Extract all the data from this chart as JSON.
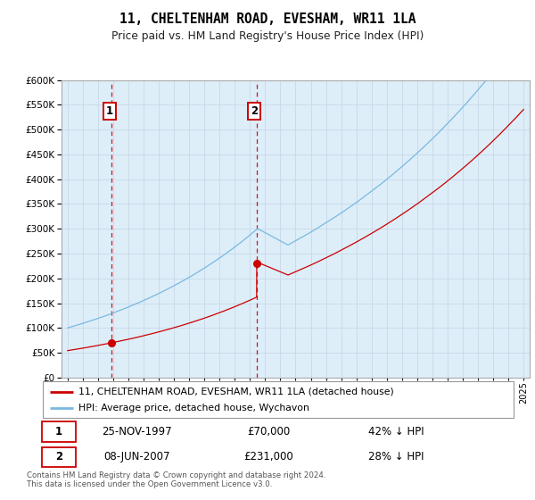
{
  "title": "11, CHELTENHAM ROAD, EVESHAM, WR11 1LA",
  "subtitle": "Price paid vs. HM Land Registry's House Price Index (HPI)",
  "legend_line1": "11, CHELTENHAM ROAD, EVESHAM, WR11 1LA (detached house)",
  "legend_line2": "HPI: Average price, detached house, Wychavon",
  "transaction1_date": "25-NOV-1997",
  "transaction1_price": 70000,
  "transaction1_label": "42% ↓ HPI",
  "transaction2_date": "08-JUN-2007",
  "transaction2_price": 231000,
  "transaction2_label": "28% ↓ HPI",
  "footnote": "Contains HM Land Registry data © Crown copyright and database right 2024.\nThis data is licensed under the Open Government Licence v3.0.",
  "hpi_color": "#7ab8e0",
  "price_color": "#cc0000",
  "background_color": "#ddeef9",
  "plot_bg": "#ffffff",
  "ylim_min": 0,
  "ylim_max": 600000,
  "grid_color": "#c8d8e8",
  "vline_color": "#cc0000",
  "marker_color": "#cc0000",
  "t1_year": 1997.9,
  "t2_year": 2007.44
}
